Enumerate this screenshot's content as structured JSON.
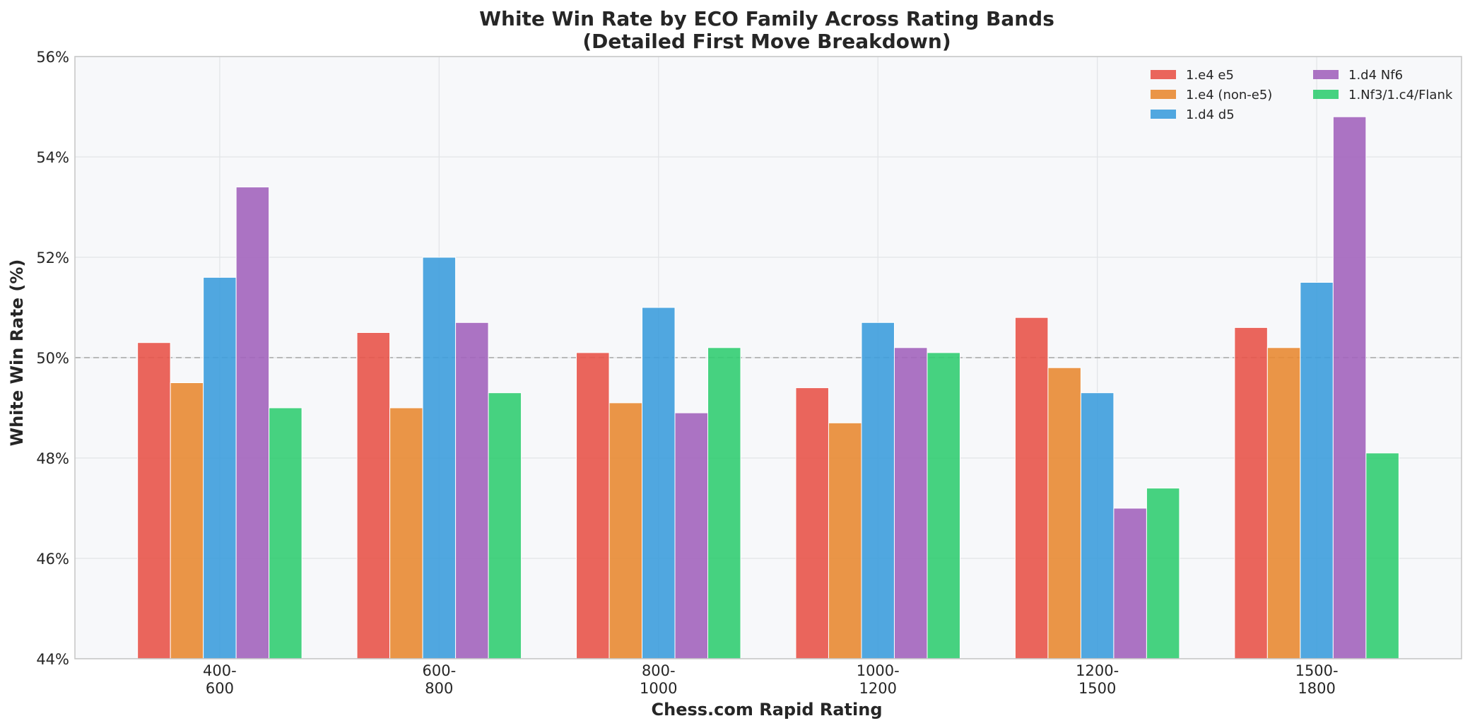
{
  "chart_data": {
    "type": "bar",
    "title_line1": "White Win Rate by ECO Family Across Rating Bands",
    "title_line2": "(Detailed First Move Breakdown)",
    "xlabel": "Chess.com Rapid Rating",
    "ylabel": "White Win Rate (%)",
    "categories": [
      [
        "400-",
        "600"
      ],
      [
        "600-",
        "800"
      ],
      [
        "800-",
        "1000"
      ],
      [
        "1000-",
        "1200"
      ],
      [
        "1200-",
        "1500"
      ],
      [
        "1500-",
        "1800"
      ]
    ],
    "ylim": [
      44,
      56
    ],
    "yticks": [
      44,
      46,
      48,
      50,
      52,
      54,
      56
    ],
    "ytick_suffix": "%",
    "reference_line": 50,
    "grid": true,
    "legend_position": "top-right",
    "legend_columns": 2,
    "series": [
      {
        "name": "1.e4 e5",
        "color": "#e8544a",
        "values": [
          50.3,
          50.5,
          50.1,
          49.4,
          50.8,
          50.6
        ]
      },
      {
        "name": "1.e4 (non-e5)",
        "color": "#e88a33",
        "values": [
          49.5,
          49.0,
          49.1,
          48.7,
          49.8,
          50.2
        ]
      },
      {
        "name": "1.d4 d5",
        "color": "#3d9ddd",
        "values": [
          51.6,
          52.0,
          51.0,
          50.7,
          49.3,
          51.5
        ]
      },
      {
        "name": "1.d4 Nf6",
        "color": "#a264bc",
        "values": [
          53.4,
          50.7,
          48.9,
          50.2,
          47.0,
          54.8
        ]
      },
      {
        "name": "1.Nf3/1.c4/Flank",
        "color": "#32cd72",
        "values": [
          49.0,
          49.3,
          50.2,
          50.1,
          47.4,
          48.1
        ]
      }
    ]
  }
}
